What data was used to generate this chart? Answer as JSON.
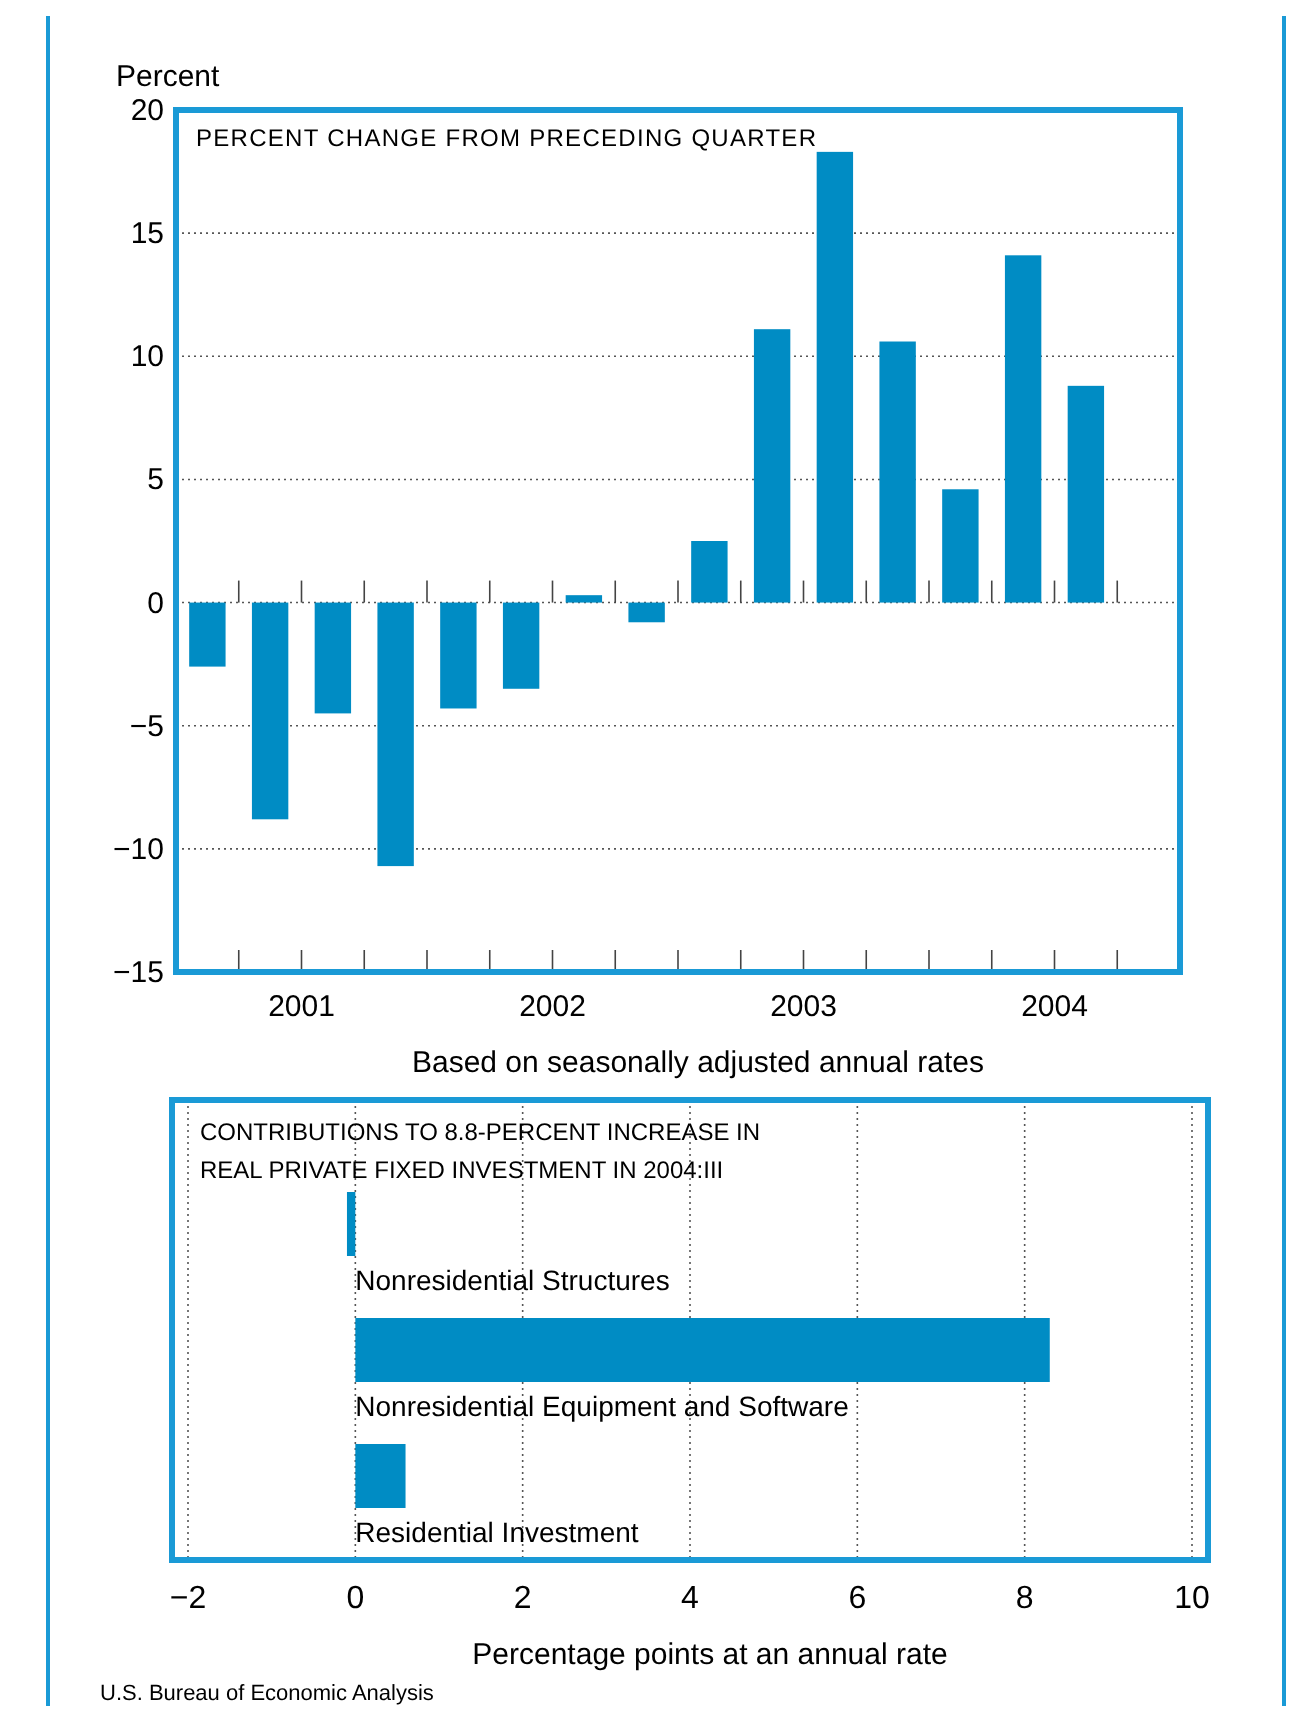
{
  "chart_data": [
    {
      "type": "bar",
      "title": "PERCENT CHANGE FROM PRECEDING QUARTER",
      "ylabel": "Percent",
      "xlabel": "Based on seasonally adjusted annual rates",
      "x": [
        2001.125,
        2001.375,
        2001.625,
        2001.875,
        2002.125,
        2002.375,
        2002.625,
        2002.875,
        2003.125,
        2003.375,
        2003.625,
        2003.875,
        2004.125,
        2004.375,
        2004.625
      ],
      "values": [
        -2.6,
        -8.8,
        -4.5,
        -10.7,
        -4.3,
        -3.5,
        0.3,
        -0.8,
        2.5,
        11.1,
        18.3,
        10.6,
        4.6,
        14.1,
        8.8
      ],
      "color": "#008cc4",
      "xlim": [
        2001,
        2005
      ],
      "xticks": [
        {
          "value": 2001.25,
          "label": null
        },
        {
          "value": 2001.5,
          "label": "2001"
        },
        {
          "value": 2001.75,
          "label": null
        },
        {
          "value": 2002,
          "label": null
        },
        {
          "value": 2002.25,
          "label": null
        },
        {
          "value": 2002.5,
          "label": "2002"
        },
        {
          "value": 2002.75,
          "label": null
        },
        {
          "value": 2003,
          "label": null
        },
        {
          "value": 2003.25,
          "label": null
        },
        {
          "value": 2003.5,
          "label": "2003"
        },
        {
          "value": 2003.75,
          "label": null
        },
        {
          "value": 2004,
          "label": null
        },
        {
          "value": 2004.25,
          "label": null
        },
        {
          "value": 2004.5,
          "label": "2004"
        },
        {
          "value": 2004.75,
          "label": null
        }
      ],
      "ylim": [
        -15,
        20
      ],
      "yticks": [
        -15,
        -10,
        -5,
        0,
        5,
        10,
        15,
        20
      ],
      "grid": "y"
    },
    {
      "type": "bar",
      "orientation": "horizontal",
      "title": "CONTRIBUTIONS TO 8.8-PERCENT INCREASE IN\nREAL PRIVATE FIXED INVESTMENT IN 2004:III",
      "xlabel": "Percentage points at an annual rate",
      "categories": [
        "Nonresidential Structures",
        "Nonresidential Equipment and Software",
        "Residential Investment"
      ],
      "values": [
        -0.1,
        8.3,
        0.6
      ],
      "color": "#008cc4",
      "xlim": [
        -2,
        10
      ],
      "xticks": [
        -2,
        0,
        2,
        4,
        6,
        8,
        10
      ],
      "grid": "x",
      "annotations": [
        "U.S. Bureau of Economic Analysis"
      ]
    }
  ]
}
